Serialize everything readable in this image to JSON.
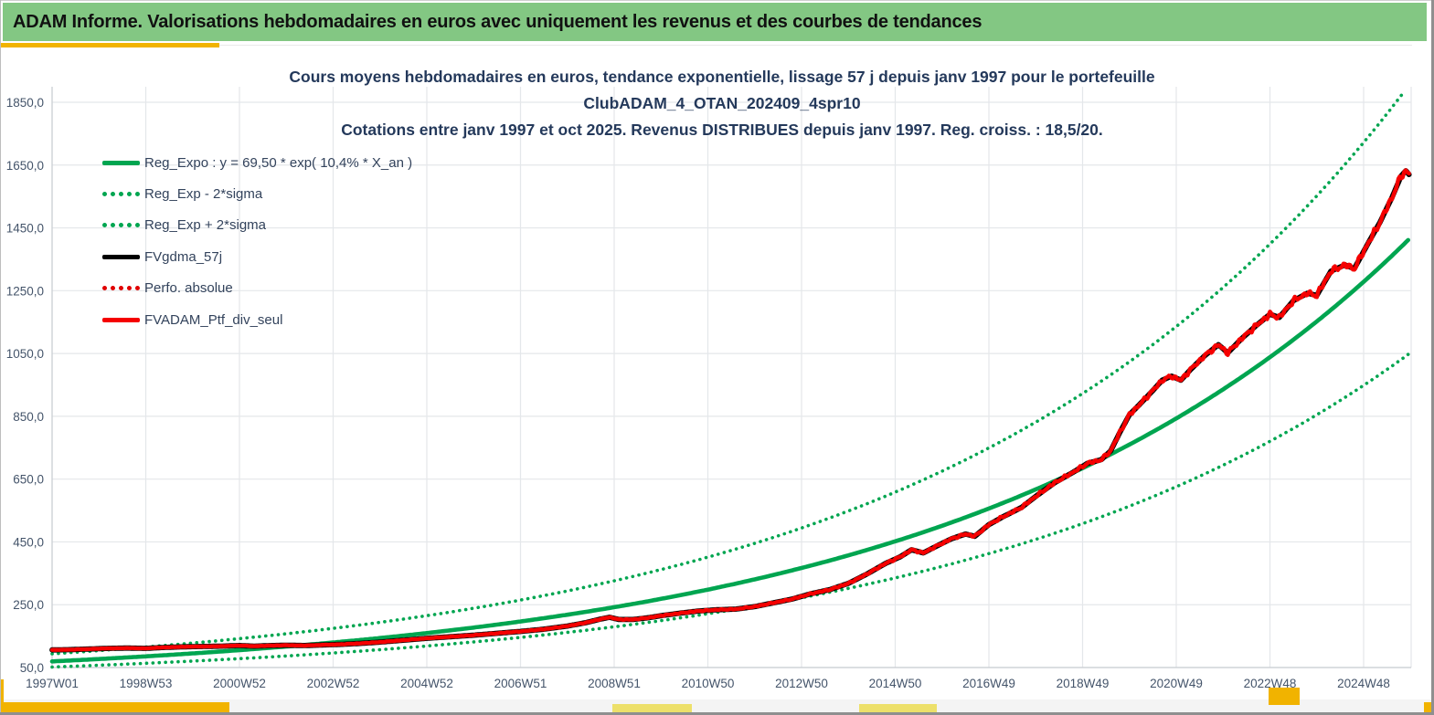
{
  "window_header": {
    "title": "ADAM Informe. Valorisations hebdomadaires en euros avec uniquement les revenus et des courbes de tendances"
  },
  "colors": {
    "header_bg": "#83C783",
    "accent_amber": "#F1B300",
    "accent_pale_yellow": "#EDE06A",
    "title_navy": "#24395B",
    "axis_text": "#44546A",
    "grid": "#E4E7EA",
    "axis_line": "#C9CDD2",
    "green": "#00A550",
    "red": "#F50000",
    "black": "#000000"
  },
  "chart_data": {
    "type": "line",
    "title_lines": [
      "Cours moyens hebdomadaires  en euros, tendance exponentielle, lissage 57 j depuis janv 1997 pour le portefeuille",
      "ClubADAM_4_OTAN_202409_4spr10",
      "Cotations  entre janv 1997 et oct 2025. Revenus DISTRIBUES  depuis janv 1997. Reg. croiss. : 18,5/20."
    ],
    "grid": true,
    "legend_position": "top-left-inside",
    "x_axis": {
      "tick_labels": [
        "1997W01",
        "1998W53",
        "2000W52",
        "2002W52",
        "2004W52",
        "2006W51",
        "2008W51",
        "2010W50",
        "2012W50",
        "2014W50",
        "2016W49",
        "2018W49",
        "2020W49",
        "2022W48",
        "2024W48"
      ],
      "tick_years_since_1997": [
        0,
        2,
        4,
        6,
        8,
        10,
        12,
        14,
        16,
        18,
        20,
        22,
        24,
        26,
        28
      ],
      "range_years_since_1997": [
        0,
        29.0
      ]
    },
    "y_axis": {
      "unit": "euros",
      "ticks": [
        {
          "label": "1850,0",
          "value": 1850
        },
        {
          "label": "1650,0",
          "value": 1650
        },
        {
          "label": "1450,0",
          "value": 1450
        },
        {
          "label": "1250,0",
          "value": 1250
        },
        {
          "label": "1050,0",
          "value": 1050
        },
        {
          "label": "850,0",
          "value": 850
        },
        {
          "label": "650,0",
          "value": 650
        },
        {
          "label": "450,0",
          "value": 450
        },
        {
          "label": "250,0",
          "value": 250
        },
        {
          "label": "50,0",
          "value": 50
        }
      ],
      "range": [
        50,
        1850
      ]
    },
    "series_legend": [
      {
        "label": "Reg_Expo : y = 69,50 * exp( 10,4% *  X_an )",
        "swatch": "green-solid"
      },
      {
        "label": "Reg_Exp - 2*sigma",
        "swatch": "green-dotted"
      },
      {
        "label": "Reg_Exp + 2*sigma",
        "swatch": "green-dotted"
      },
      {
        "label": "FVgdma_57j",
        "swatch": "black-solid"
      },
      {
        "label": "Perfo. absolue",
        "swatch": "red-dotted"
      },
      {
        "label": "FVADAM_Ptf_div_seul",
        "swatch": "red-solid"
      }
    ],
    "series": [
      {
        "name": "Reg_Expo",
        "formula": "y = 69,50 * exp( 10,4% * X_an )",
        "type": "exponential",
        "a": 69.5,
        "rate_per_year": 0.104,
        "band_multiplier": 1.0,
        "color": "#00A550",
        "style": "solid",
        "width": 4.6
      },
      {
        "name": "Reg_Exp - 2*sigma",
        "type": "exponential",
        "a": 69.5,
        "rate_per_year": 0.104,
        "band_multiplier": 0.742,
        "color": "#00A550",
        "style": "dotted",
        "width": 3.6
      },
      {
        "name": "Reg_Exp + 2*sigma",
        "type": "exponential",
        "a": 69.5,
        "rate_per_year": 0.104,
        "band_multiplier": 1.347,
        "color": "#00A550",
        "style": "dotted",
        "width": 3.6
      },
      {
        "name": "FVgdma_57j",
        "type": "smoothed_baseline_of_points",
        "color": "#000000",
        "style": "solid",
        "width": 5.8,
        "note": "57-day moving average, runs just beneath FVADAM_Ptf_div_seul"
      },
      {
        "name": "Perfo. absolue",
        "type": "points_same_path",
        "color": "#E00000",
        "style": "dotted",
        "width": 3,
        "note": "coincides with FVADAM_Ptf_div_seul and is hidden beneath it"
      },
      {
        "name": "FVADAM_Ptf_div_seul",
        "type": "points",
        "color": "#F50000",
        "style": "solid",
        "width": 4.4,
        "points_t_years_value_eur": [
          [
            0,
            106
          ],
          [
            0.4,
            107
          ],
          [
            0.8,
            109
          ],
          [
            1.2,
            111
          ],
          [
            1.6,
            112
          ],
          [
            2,
            111
          ],
          [
            2.4,
            114
          ],
          [
            2.8,
            116
          ],
          [
            3.2,
            117
          ],
          [
            3.6,
            118
          ],
          [
            4,
            120
          ],
          [
            4.3,
            118
          ],
          [
            4.7,
            120
          ],
          [
            5,
            121
          ],
          [
            5.4,
            120
          ],
          [
            5.8,
            122
          ],
          [
            6.2,
            124
          ],
          [
            6.6,
            127
          ],
          [
            7,
            131
          ],
          [
            7.5,
            137
          ],
          [
            8,
            143
          ],
          [
            8.5,
            148
          ],
          [
            9,
            153
          ],
          [
            9.5,
            159
          ],
          [
            10,
            165
          ],
          [
            10.5,
            172
          ],
          [
            11,
            182
          ],
          [
            11.4,
            193
          ],
          [
            11.7,
            204
          ],
          [
            11.9,
            210
          ],
          [
            12.1,
            203
          ],
          [
            12.4,
            203
          ],
          [
            12.7,
            208
          ],
          [
            13,
            215
          ],
          [
            13.4,
            223
          ],
          [
            13.8,
            230
          ],
          [
            14.2,
            234
          ],
          [
            14.6,
            236
          ],
          [
            15,
            244
          ],
          [
            15.4,
            256
          ],
          [
            15.8,
            268
          ],
          [
            16.2,
            285
          ],
          [
            16.6,
            298
          ],
          [
            17,
            318
          ],
          [
            17.4,
            348
          ],
          [
            17.8,
            382
          ],
          [
            18.1,
            402
          ],
          [
            18.35,
            425
          ],
          [
            18.6,
            415
          ],
          [
            18.9,
            438
          ],
          [
            19.2,
            460
          ],
          [
            19.5,
            475
          ],
          [
            19.7,
            468
          ],
          [
            20,
            505
          ],
          [
            20.3,
            530
          ],
          [
            20.7,
            560
          ],
          [
            21,
            595
          ],
          [
            21.4,
            638
          ],
          [
            21.8,
            672
          ],
          [
            22.1,
            700
          ],
          [
            22.4,
            712
          ],
          [
            22.6,
            740
          ],
          [
            22.8,
            800
          ],
          [
            23,
            855
          ],
          [
            23.2,
            885
          ],
          [
            23.5,
            932
          ],
          [
            23.7,
            965
          ],
          [
            23.9,
            978
          ],
          [
            24.1,
            965
          ],
          [
            24.3,
            998
          ],
          [
            24.6,
            1042
          ],
          [
            24.9,
            1078
          ],
          [
            25.1,
            1052
          ],
          [
            25.4,
            1098
          ],
          [
            25.7,
            1138
          ],
          [
            26,
            1175
          ],
          [
            26.2,
            1165
          ],
          [
            26.5,
            1218
          ],
          [
            26.8,
            1242
          ],
          [
            27,
            1235
          ],
          [
            27.3,
            1312
          ],
          [
            27.6,
            1332
          ],
          [
            27.8,
            1320
          ],
          [
            28.1,
            1402
          ],
          [
            28.35,
            1468
          ],
          [
            28.6,
            1545
          ],
          [
            28.8,
            1615
          ],
          [
            28.9,
            1632
          ],
          [
            28.97,
            1620
          ]
        ]
      }
    ]
  }
}
